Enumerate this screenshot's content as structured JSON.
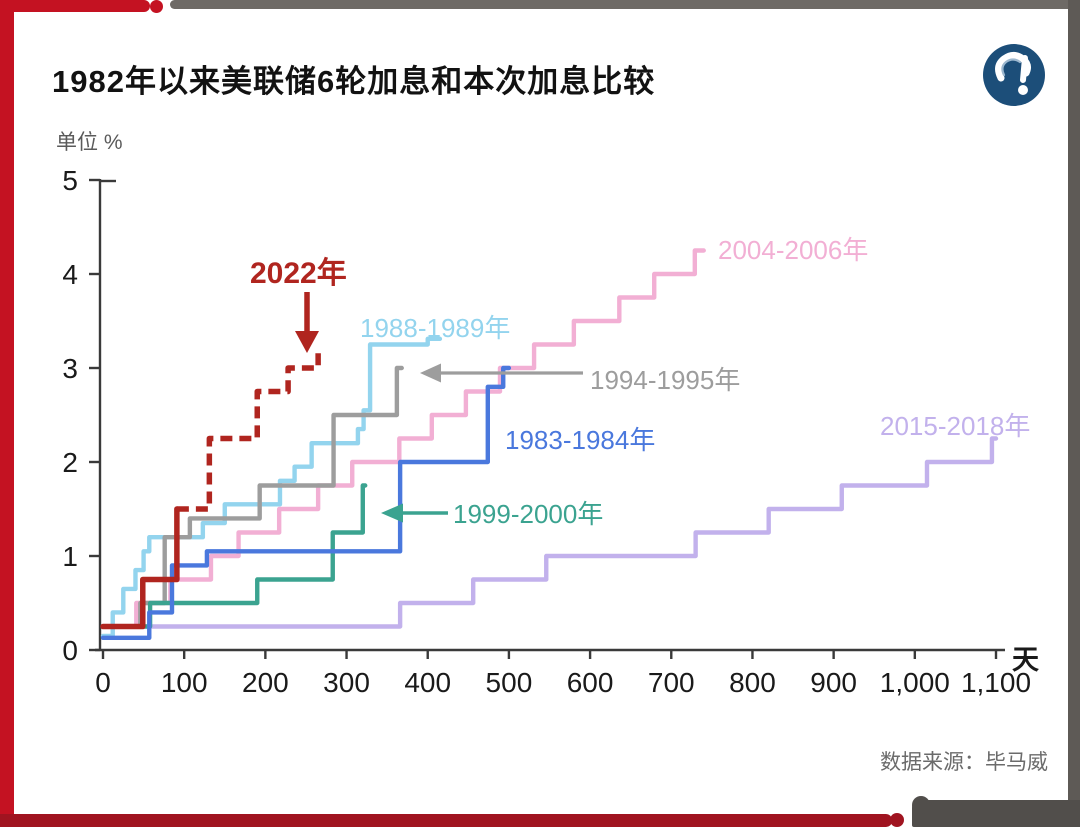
{
  "page": {
    "title": "1982年以来美联储6轮加息和本次加息比较",
    "unit_label": "单位 %",
    "x_axis_unit": "天",
    "source": "数据来源：毕马威",
    "logo": {
      "name": "publisher-logo",
      "bg_color": "#1c4e79",
      "glyph": "question-exclamation-swirl"
    }
  },
  "chart_data": {
    "type": "line",
    "subtype": "step-after",
    "title": "1982年以来美联储6轮加息和本次加息比较",
    "xlabel": "天",
    "ylabel": "单位 %",
    "xlim": [
      0,
      1100
    ],
    "ylim": [
      0,
      5
    ],
    "grid": false,
    "legend_position": "inline-annotations",
    "x_ticks": [
      0,
      100,
      200,
      300,
      400,
      500,
      600,
      700,
      800,
      900,
      1000,
      1100
    ],
    "x_tick_labels": [
      "0",
      "100",
      "200",
      "300",
      "400",
      "500",
      "600",
      "700",
      "800",
      "900",
      "1,000",
      "1,100"
    ],
    "y_ticks": [
      0,
      1,
      2,
      3,
      4,
      5
    ],
    "y_tick_labels": [
      "0",
      "1",
      "2",
      "3",
      "4",
      "5"
    ],
    "series": [
      {
        "name": "2015-2018",
        "label": "2015-2018年",
        "color": "#c2b1ec",
        "dashed": false,
        "end_day": 1100,
        "points": [
          [
            0,
            0.25
          ],
          [
            366,
            0.5
          ],
          [
            456,
            0.75
          ],
          [
            546,
            1.0
          ],
          [
            730,
            1.25
          ],
          [
            820,
            1.5
          ],
          [
            910,
            1.75
          ],
          [
            1015,
            2.0
          ],
          [
            1095,
            2.25
          ]
        ]
      },
      {
        "name": "2004-2006",
        "label": "2004-2006年",
        "color": "#f2afd4",
        "dashed": false,
        "end_day": 740,
        "points": [
          [
            0,
            0.25
          ],
          [
            41,
            0.5
          ],
          [
            83,
            0.75
          ],
          [
            133,
            1.0
          ],
          [
            167,
            1.25
          ],
          [
            217,
            1.5
          ],
          [
            265,
            1.75
          ],
          [
            307,
            2.0
          ],
          [
            365,
            2.25
          ],
          [
            405,
            2.5
          ],
          [
            447,
            2.75
          ],
          [
            489,
            3.0
          ],
          [
            531,
            3.25
          ],
          [
            580,
            3.5
          ],
          [
            636,
            3.75
          ],
          [
            679,
            4.0
          ],
          [
            729,
            4.25
          ]
        ]
      },
      {
        "name": "1988-1989",
        "label": "1988-1989年",
        "color": "#93d4ee",
        "dashed": false,
        "end_day": 415,
        "points": [
          [
            0,
            0.15
          ],
          [
            12,
            0.4
          ],
          [
            25,
            0.65
          ],
          [
            40,
            0.85
          ],
          [
            50,
            1.05
          ],
          [
            57,
            1.2
          ],
          [
            123,
            1.35
          ],
          [
            150,
            1.55
          ],
          [
            218,
            1.8
          ],
          [
            236,
            1.95
          ],
          [
            257,
            2.2
          ],
          [
            314,
            2.35
          ],
          [
            321,
            2.55
          ],
          [
            329,
            3.25
          ],
          [
            400,
            3.31
          ]
        ]
      },
      {
        "name": "1994-1995",
        "label": "1994-1995年",
        "color": "#9d9d9d",
        "dashed": false,
        "end_day": 368,
        "points": [
          [
            0,
            0.25
          ],
          [
            46,
            0.5
          ],
          [
            76,
            1.2
          ],
          [
            107,
            1.4
          ],
          [
            193,
            1.75
          ],
          [
            284,
            2.5
          ],
          [
            362,
            3.0
          ]
        ]
      },
      {
        "name": "1999-2000",
        "label": "1999-2000年",
        "color": "#3ba390",
        "dashed": false,
        "end_day": 323,
        "points": [
          [
            0,
            0.25
          ],
          [
            58,
            0.5
          ],
          [
            190,
            0.75
          ],
          [
            283,
            1.25
          ],
          [
            320,
            1.75
          ]
        ]
      },
      {
        "name": "1983-1984",
        "label": "1983-1984年",
        "color": "#4a78dd",
        "dashed": false,
        "end_day": 500,
        "points": [
          [
            0,
            0.13
          ],
          [
            57,
            0.4
          ],
          [
            85,
            0.9
          ],
          [
            128,
            1.05
          ],
          [
            366,
            2.0
          ],
          [
            474,
            2.8
          ],
          [
            493,
            3.0
          ]
        ]
      },
      {
        "name": "2022",
        "label": "2022年",
        "color": "#b0251f",
        "dashed": true,
        "solid_until_day": 91,
        "end_day": 268,
        "points": [
          [
            0,
            0.25
          ],
          [
            49,
            0.75
          ],
          [
            91,
            1.5
          ],
          [
            131,
            2.25
          ],
          [
            190,
            2.75
          ],
          [
            228,
            3.0
          ],
          [
            265,
            3.2
          ]
        ]
      }
    ]
  }
}
